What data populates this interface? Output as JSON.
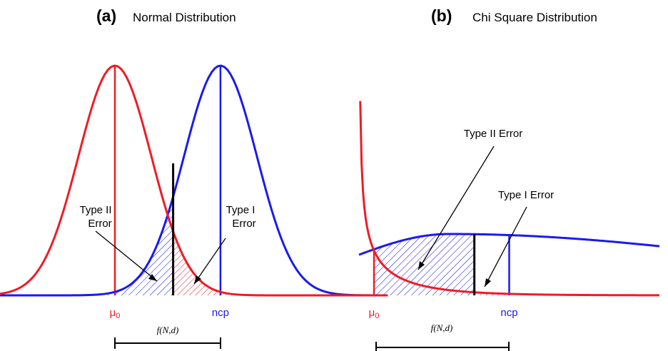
{
  "colors": {
    "null": "#ee1c25",
    "alt": "#1a1aee",
    "ink": "#000000"
  },
  "chart_data": [
    {
      "type": "line",
      "panel_letter": "(a)",
      "title": "Normal Distribution",
      "distribution": "normal",
      "series": [
        {
          "name": "",
          "role": "null",
          "mean": 0,
          "sd": 1
        },
        {
          "name": "",
          "role": "alt",
          "mean": 2.9,
          "sd": 1
        }
      ],
      "xlim": [
        -4.6,
        7.5
      ],
      "critical_value": 1.6,
      "shaded_regions": [
        {
          "label": "Type II\nError",
          "series": "alt",
          "from": -4.6,
          "to": 1.6,
          "color": "#1a1aee"
        },
        {
          "label": "Type I\nError",
          "series": "null",
          "from": 1.6,
          "to": 7.5,
          "color": "#ee1c25"
        }
      ],
      "tick_labels": [
        {
          "text": "μ0",
          "x": 0,
          "color": "#ee1c25"
        },
        {
          "text": "ncp",
          "x": 2.9,
          "color": "#1a1aee"
        }
      ],
      "bracket_label": "f(N,d)",
      "bracket_span": [
        0,
        2.9
      ],
      "grid": false
    },
    {
      "type": "line",
      "panel_letter": "(b)",
      "title": "Chi Square Distribution",
      "distribution": "chi-square",
      "series": [
        {
          "name": "",
          "role": "null",
          "df": 1,
          "ncp": 0
        },
        {
          "name": "",
          "role": "alt",
          "df": 1,
          "ncp": 4.5
        }
      ],
      "xlim": [
        0,
        10
      ],
      "critical_value": 3.84,
      "shaded_regions": [
        {
          "label": "Type II Error",
          "series": "alt",
          "from": 0.5,
          "to": 3.84,
          "color": "#1a1aee"
        },
        {
          "label": "Type I Error",
          "series": "null",
          "from": 3.84,
          "to": 10,
          "color": "#ee1c25"
        }
      ],
      "tick_labels": [
        {
          "text": "μ0",
          "x": 0.5,
          "color": "#ee1c25"
        },
        {
          "text": "ncp",
          "x": 5.0,
          "color": "#1a1aee"
        }
      ],
      "bracket_label": "f(N,d)",
      "bracket_span": [
        0.5,
        5.0
      ],
      "grid": false
    }
  ]
}
